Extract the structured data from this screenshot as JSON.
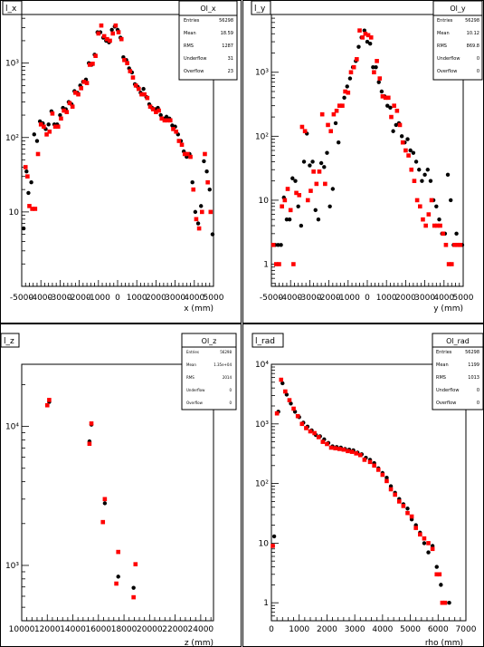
{
  "chart_data": [
    {
      "type": "scatter",
      "title": "l_x",
      "xlabel": "x (mm)",
      "ylabel": "",
      "xlim": [
        -5000,
        5000
      ],
      "ylim": [
        1,
        4500
      ],
      "yscale": "log",
      "grid": false,
      "xticks": [
        "-5000",
        "-4000",
        "-3000",
        "-2000",
        "-1000",
        "0",
        "1000",
        "2000",
        "3000",
        "4000",
        "5000"
      ],
      "yticks": [
        "10",
        "10²",
        "10³"
      ],
      "stats": {
        "name": "Ol_x",
        "rows": [
          [
            "Entries",
            "56298"
          ],
          [
            "Mean",
            "18.59"
          ],
          [
            "RMS",
            "1287"
          ],
          [
            "Underflow",
            "31"
          ],
          [
            "Overflow",
            "23"
          ]
        ]
      },
      "series": [
        {
          "color": "#000000",
          "marker": "circle",
          "x": [
            -4900,
            -4750,
            -4650,
            -4500,
            -4350,
            -4200,
            -4050,
            -3900,
            -3750,
            -3600,
            -3450,
            -3300,
            -3150,
            -3000,
            -2850,
            -2700,
            -2550,
            -2400,
            -2250,
            -2100,
            -1950,
            -1800,
            -1650,
            -1500,
            -1350,
            -1200,
            -1050,
            -900,
            -750,
            -600,
            -450,
            -300,
            -150,
            0,
            150,
            300,
            450,
            600,
            750,
            900,
            1050,
            1200,
            1350,
            1500,
            1650,
            1800,
            1950,
            2100,
            2250,
            2400,
            2550,
            2700,
            2850,
            3000,
            3150,
            3300,
            3450,
            3600,
            3750,
            3900,
            4050,
            4200,
            4350,
            4500,
            4650,
            4800,
            4950
          ],
          "y": [
            6,
            35,
            18,
            25,
            110,
            90,
            165,
            155,
            130,
            150,
            225,
            150,
            150,
            200,
            250,
            240,
            300,
            280,
            420,
            400,
            500,
            560,
            600,
            1000,
            950,
            1300,
            2600,
            2600,
            2200,
            2000,
            1900,
            2800,
            3100,
            2800,
            2200,
            1200,
            1100,
            850,
            750,
            520,
            480,
            400,
            450,
            350,
            280,
            250,
            240,
            250,
            200,
            180,
            190,
            180,
            145,
            140,
            110,
            90,
            65,
            55,
            60,
            25,
            10,
            7,
            12,
            48,
            35,
            20,
            5
          ]
        },
        {
          "color": "#ff0000",
          "marker": "square",
          "x": [
            -4800,
            -4700,
            -4600,
            -4450,
            -4300,
            -4150,
            -4000,
            -3850,
            -3700,
            -3550,
            -3400,
            -3250,
            -3100,
            -2950,
            -2800,
            -2650,
            -2500,
            -2350,
            -2200,
            -2050,
            -1900,
            -1750,
            -1600,
            -1450,
            -1300,
            -1150,
            -1000,
            -850,
            -700,
            -550,
            -400,
            -250,
            -100,
            50,
            200,
            350,
            500,
            650,
            800,
            950,
            1100,
            1250,
            1400,
            1550,
            1700,
            1850,
            2000,
            2150,
            2300,
            2450,
            2600,
            2750,
            2900,
            3050,
            3200,
            3350,
            3500,
            3650,
            3800,
            3950,
            4100,
            4250,
            4400,
            4550,
            4700,
            4850
          ],
          "y": [
            40,
            30,
            12,
            11,
            11,
            60,
            150,
            140,
            110,
            120,
            210,
            140,
            140,
            180,
            230,
            220,
            290,
            260,
            400,
            380,
            460,
            560,
            540,
            950,
            980,
            1250,
            2500,
            3200,
            2300,
            2100,
            2000,
            2500,
            3200,
            2600,
            2100,
            1100,
            1000,
            780,
            640,
            500,
            450,
            380,
            380,
            340,
            260,
            240,
            220,
            230,
            180,
            170,
            170,
            170,
            130,
            120,
            90,
            80,
            60,
            60,
            55,
            20,
            8,
            6,
            10,
            60,
            25,
            10
          ]
        }
      ]
    },
    {
      "type": "scatter",
      "title": "l_y",
      "xlabel": "y (mm)",
      "ylabel": "",
      "xlim": [
        -5000,
        5000
      ],
      "ylim": [
        0.45,
        8000
      ],
      "yscale": "log",
      "grid": false,
      "xticks": [
        "-5000",
        "-4000",
        "-3000",
        "-2000",
        "-1000",
        "0",
        "1000",
        "2000",
        "3000",
        "4000",
        "5000"
      ],
      "yticks": [
        "1",
        "10",
        "10²",
        "10³"
      ],
      "stats": {
        "name": "Ol_y",
        "rows": [
          [
            "Entries",
            "56298"
          ],
          [
            "Mean",
            "10.12"
          ],
          [
            "RMS",
            "869.8"
          ],
          [
            "Underflow",
            "0"
          ],
          [
            "Overflow",
            "0"
          ]
        ]
      },
      "series": [
        {
          "color": "#000000",
          "marker": "circle",
          "x": [
            -4800,
            -4650,
            -4500,
            -4350,
            -4200,
            -4050,
            -3900,
            -3750,
            -3600,
            -3450,
            -3300,
            -3150,
            -3000,
            -2850,
            -2700,
            -2550,
            -2400,
            -2250,
            -2100,
            -1950,
            -1800,
            -1650,
            -1500,
            -1350,
            -1200,
            -1050,
            -900,
            -750,
            -600,
            -450,
            -300,
            -150,
            0,
            150,
            300,
            450,
            600,
            750,
            900,
            1050,
            1200,
            1350,
            1500,
            1650,
            1800,
            1950,
            2100,
            2250,
            2400,
            2550,
            2700,
            2850,
            3000,
            3150,
            3300,
            3450,
            3600,
            3750,
            3900,
            4050,
            4200,
            4350,
            4500,
            4650,
            4800,
            4950
          ],
          "y": [
            2,
            2,
            2,
            11,
            5,
            5,
            22,
            20,
            8,
            4,
            40,
            110,
            35,
            40,
            7,
            5,
            38,
            33,
            55,
            8,
            15,
            160,
            80,
            300,
            400,
            600,
            800,
            1200,
            1500,
            2500,
            3500,
            4500,
            3000,
            2800,
            1200,
            1200,
            700,
            500,
            420,
            300,
            280,
            120,
            150,
            160,
            100,
            80,
            90,
            60,
            55,
            40,
            30,
            20,
            25,
            30,
            20,
            10,
            8,
            5,
            3,
            3,
            25,
            10,
            2,
            3,
            2,
            2
          ]
        },
        {
          "color": "#ff0000",
          "marker": "square",
          "x": [
            -4900,
            -4750,
            -4600,
            -4450,
            -4300,
            -4150,
            -4000,
            -3850,
            -3700,
            -3550,
            -3400,
            -3250,
            -3100,
            -2950,
            -2800,
            -2650,
            -2500,
            -2350,
            -2200,
            -2050,
            -1900,
            -1750,
            -1600,
            -1450,
            -1300,
            -1150,
            -1000,
            -850,
            -700,
            -550,
            -400,
            -250,
            -100,
            50,
            200,
            350,
            500,
            650,
            800,
            950,
            1100,
            1250,
            1400,
            1550,
            1700,
            1850,
            2000,
            2150,
            2300,
            2450,
            2600,
            2750,
            2900,
            3050,
            3200,
            3350,
            3500,
            3650,
            3800,
            3950,
            4100,
            4250,
            4400,
            4550,
            4700,
            4850
          ],
          "y": [
            2,
            1,
            1,
            8,
            10,
            15,
            7,
            1,
            13,
            12,
            140,
            120,
            10,
            14,
            28,
            18,
            28,
            220,
            18,
            150,
            120,
            220,
            250,
            300,
            300,
            500,
            480,
            1000,
            1200,
            1600,
            4500,
            3500,
            4000,
            3800,
            3500,
            1000,
            1500,
            800,
            420,
            400,
            400,
            200,
            300,
            250,
            150,
            80,
            60,
            50,
            30,
            20,
            10,
            8,
            5,
            4,
            6,
            10,
            4,
            4,
            4,
            3,
            2,
            1,
            1,
            2,
            2,
            2
          ]
        }
      ]
    },
    {
      "type": "scatter",
      "title": "l_z",
      "xlabel": "z (mm)",
      "ylabel": "",
      "xlim": [
        10000,
        25000
      ],
      "ylim": [
        400,
        28000
      ],
      "yscale": "log",
      "grid": false,
      "xticks": [
        "10000",
        "12000",
        "14000",
        "16000",
        "18000",
        "20000",
        "22000",
        "24000"
      ],
      "yticks": [
        "10³",
        "10⁴"
      ],
      "stats": {
        "name": "Ol_z",
        "rows": [
          [
            "Entries",
            "56298"
          ],
          [
            "Mean",
            "1.35e+04"
          ],
          [
            "RMS",
            "2014"
          ],
          [
            "Underflow",
            "0"
          ],
          [
            "Overflow",
            "0"
          ]
        ]
      },
      "series": [
        {
          "color": "#000000",
          "marker": "circle",
          "x": [
            12150,
            15450,
            15300,
            16500,
            17550,
            18750
          ],
          "y": [
            15000,
            10300,
            7800,
            2800,
            830,
            690
          ]
        },
        {
          "color": "#ff0000",
          "marker": "square",
          "x": [
            12000,
            12150,
            15450,
            15300,
            16500,
            16350,
            17550,
            17400,
            18750,
            18900
          ],
          "y": [
            14200,
            15500,
            10500,
            7500,
            3000,
            2050,
            1250,
            740,
            590,
            1020
          ]
        }
      ]
    },
    {
      "type": "scatter",
      "title": "l_rad",
      "xlabel": "rho (mm)",
      "ylabel": "",
      "xlim": [
        0,
        7000
      ],
      "ylim": [
        0.5,
        10000
      ],
      "yscale": "log",
      "grid": false,
      "xticks": [
        "0",
        "1000",
        "2000",
        "3000",
        "4000",
        "5000",
        "6000",
        "7000"
      ],
      "yticks": [
        "1",
        "10",
        "10²",
        "10³",
        "10⁴"
      ],
      "stats": {
        "name": "Ol_rad",
        "rows": [
          [
            "Entries",
            "56298"
          ],
          [
            "Mean",
            "1199"
          ],
          [
            "RMS",
            "1013"
          ],
          [
            "Underflow",
            "0"
          ],
          [
            "Overflow",
            "0"
          ]
        ]
      },
      "series": [
        {
          "color": "#000000",
          "marker": "circle",
          "x": [
            100,
            250,
            400,
            550,
            700,
            850,
            1000,
            1150,
            1300,
            1450,
            1600,
            1750,
            1900,
            2050,
            2200,
            2350,
            2500,
            2650,
            2800,
            2950,
            3100,
            3250,
            3400,
            3550,
            3700,
            3850,
            4000,
            4150,
            4300,
            4450,
            4600,
            4750,
            4900,
            5050,
            5200,
            5350,
            5500,
            5650,
            5800,
            5950,
            6100,
            6250,
            6400
          ],
          "y": [
            13,
            1600,
            4800,
            3100,
            2200,
            1600,
            1300,
            1050,
            900,
            780,
            650,
            620,
            550,
            480,
            420,
            410,
            400,
            380,
            370,
            360,
            330,
            310,
            270,
            250,
            220,
            180,
            150,
            125,
            90,
            70,
            55,
            45,
            38,
            25,
            20,
            15,
            10,
            7,
            9,
            4,
            2,
            1,
            1
          ]
        },
        {
          "color": "#ff0000",
          "marker": "square",
          "x": [
            50,
            200,
            350,
            500,
            650,
            800,
            950,
            1100,
            1250,
            1400,
            1550,
            1700,
            1850,
            2000,
            2150,
            2300,
            2450,
            2600,
            2750,
            2900,
            3050,
            3200,
            3350,
            3550,
            3700,
            3850,
            4000,
            4150,
            4300,
            4450,
            4600,
            4750,
            4900,
            5050,
            5200,
            5350,
            5500,
            5650,
            5800,
            5950,
            6050,
            6150,
            6250
          ],
          "y": [
            9,
            1500,
            5500,
            3500,
            2500,
            1800,
            1350,
            1000,
            850,
            750,
            700,
            600,
            500,
            460,
            400,
            390,
            380,
            370,
            350,
            340,
            320,
            300,
            250,
            230,
            200,
            170,
            140,
            110,
            80,
            65,
            50,
            42,
            32,
            28,
            18,
            14,
            12,
            10,
            8,
            3,
            3,
            1,
            1
          ]
        }
      ]
    }
  ]
}
